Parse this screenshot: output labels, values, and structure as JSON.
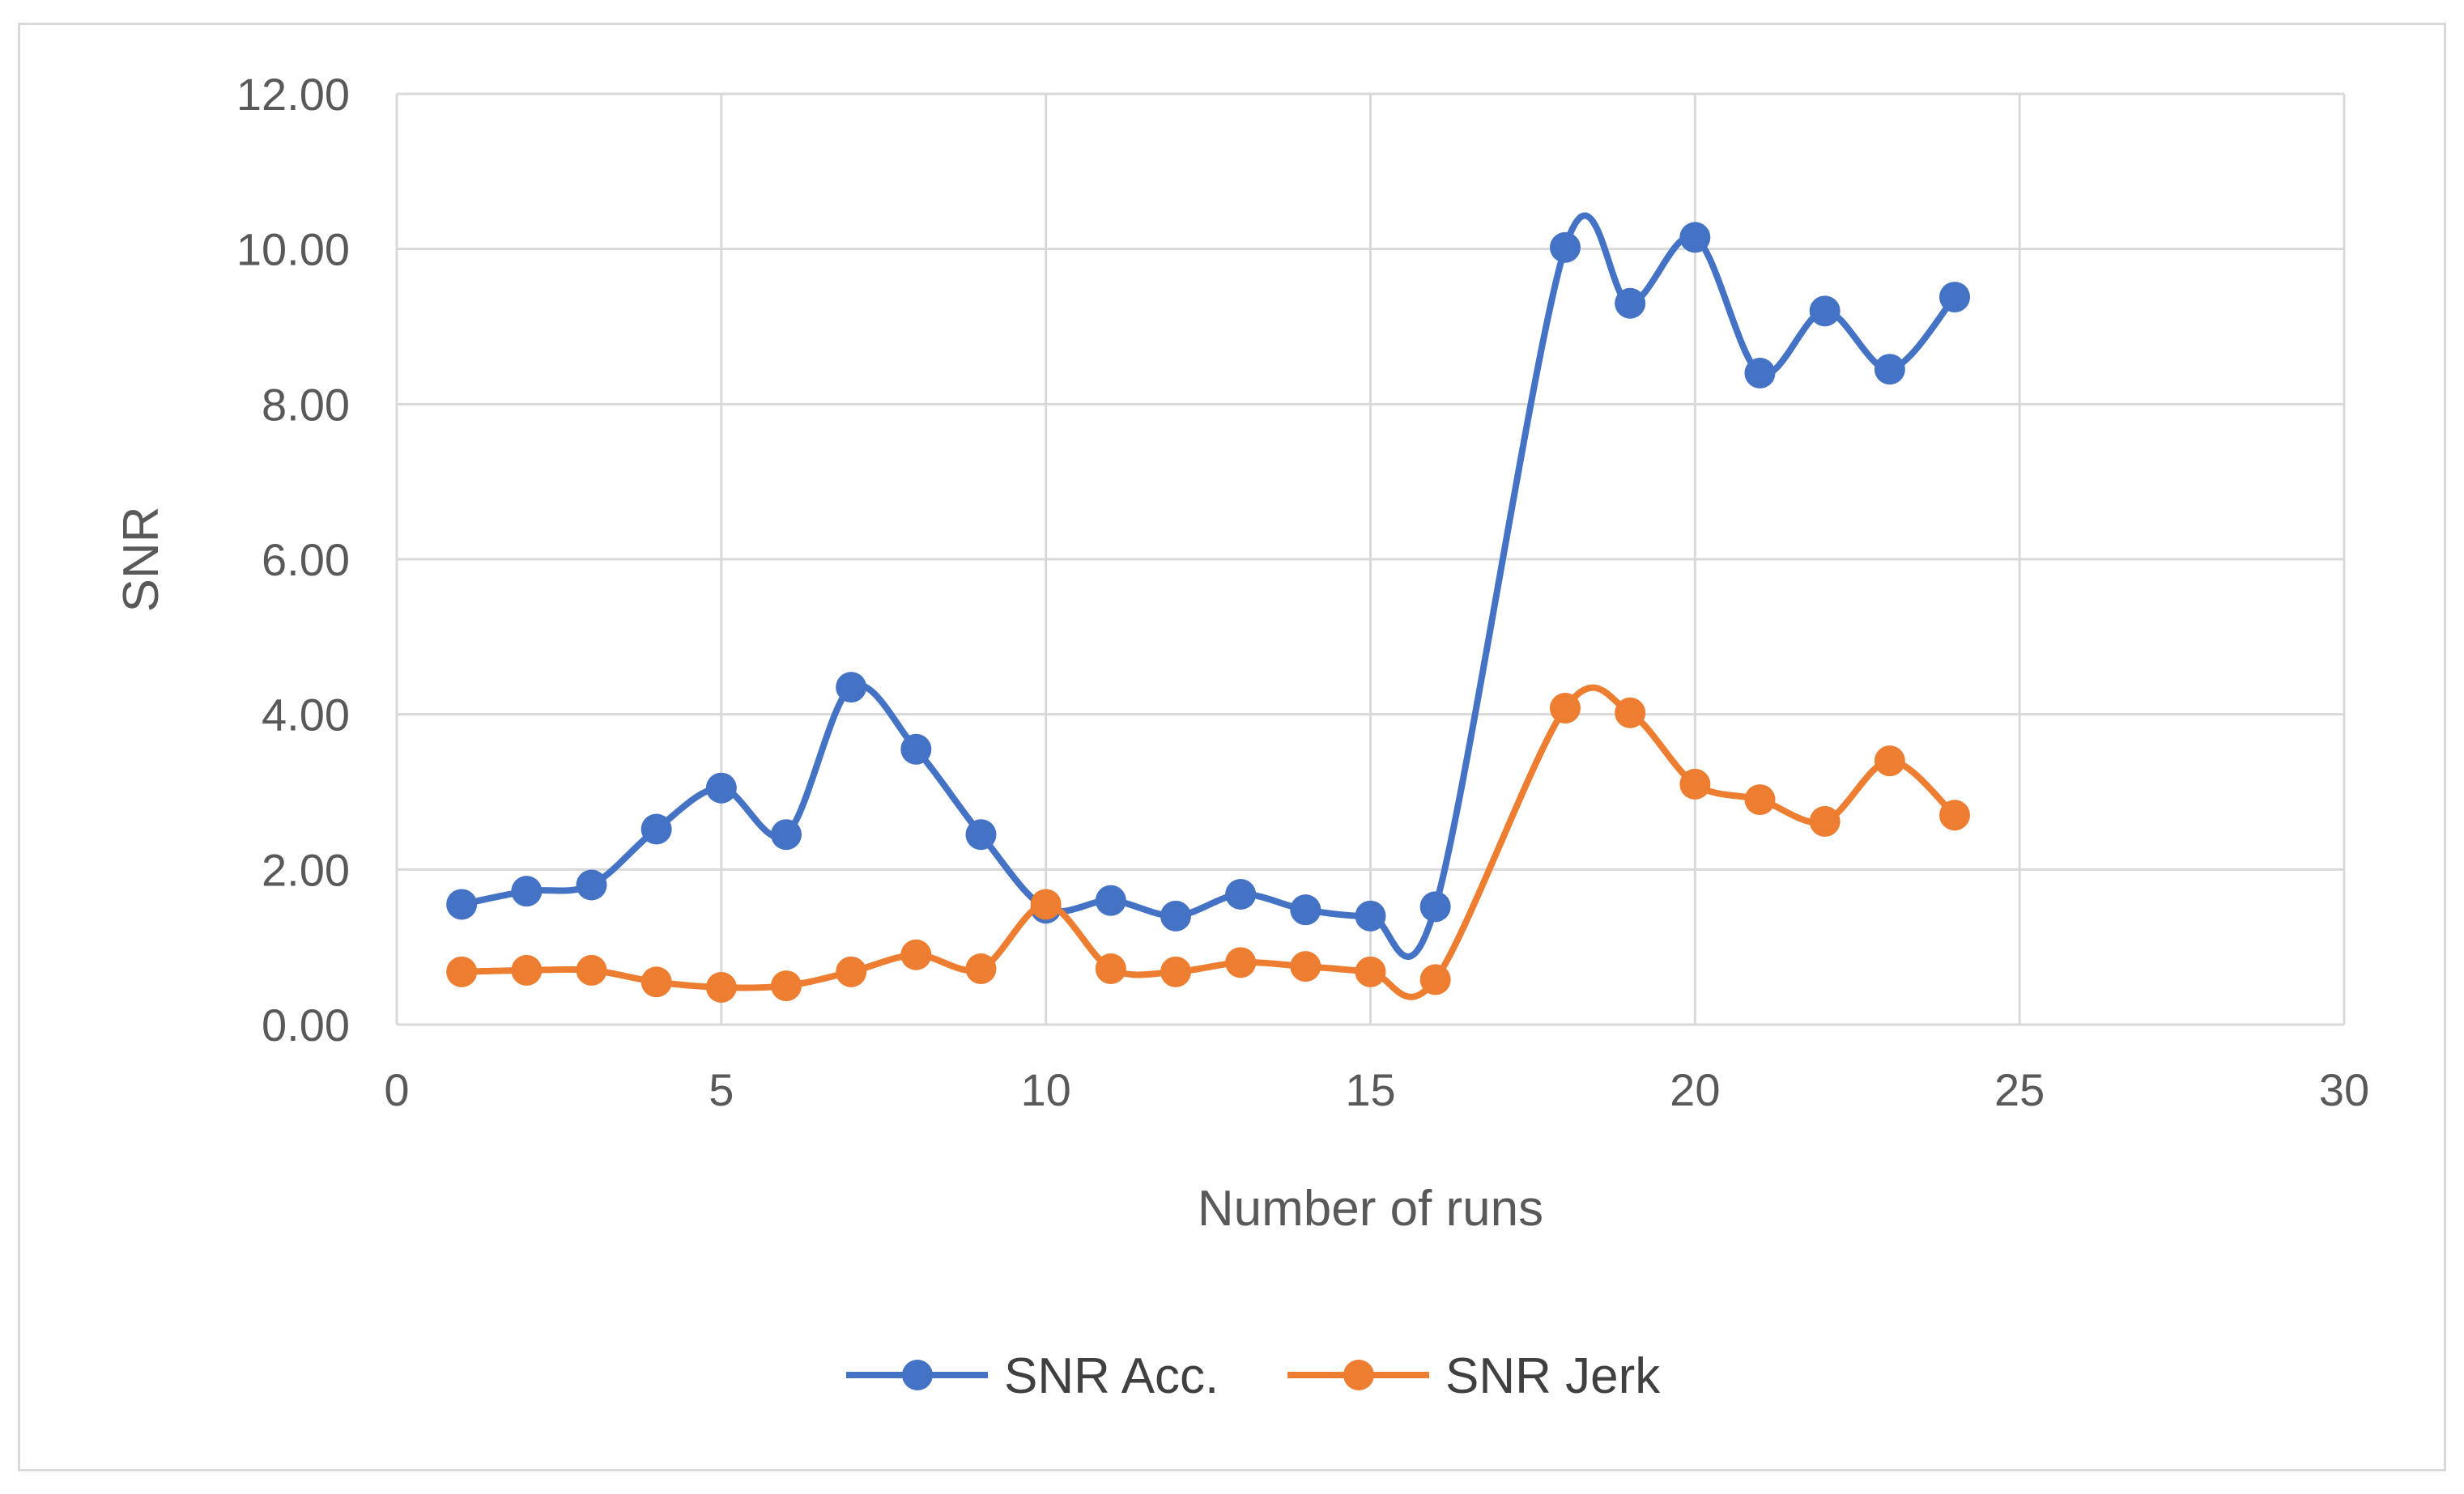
{
  "chart_data": {
    "type": "line",
    "title": "",
    "xlabel": "Number  of runs",
    "ylabel": "SNR",
    "xlim": [
      0,
      30
    ],
    "ylim": [
      0,
      12
    ],
    "x_ticks": [
      0,
      5,
      10,
      15,
      20,
      25,
      30
    ],
    "x_tick_labels": [
      "0",
      "5",
      "10",
      "15",
      "20",
      "25",
      "30"
    ],
    "y_ticks": [
      0,
      2,
      4,
      6,
      8,
      10,
      12
    ],
    "y_tick_labels": [
      "0.00",
      "2.00",
      "4.00",
      "6.00",
      "8.00",
      "10.00",
      "12.00"
    ],
    "grid": true,
    "legend_position": "bottom",
    "x": [
      1,
      2,
      3,
      4,
      5,
      6,
      7,
      8,
      9,
      10,
      11,
      12,
      13,
      14,
      15,
      16,
      18,
      19,
      20,
      21,
      22,
      23,
      24
    ],
    "series": [
      {
        "name": "SNR Acc.",
        "color": "#4472c4",
        "values": [
          1.55,
          1.72,
          1.8,
          2.52,
          3.05,
          2.45,
          4.35,
          3.55,
          2.45,
          1.5,
          1.6,
          1.4,
          1.68,
          1.48,
          1.4,
          1.52,
          10.02,
          9.3,
          10.15,
          8.4,
          9.2,
          8.45,
          9.38
        ]
      },
      {
        "name": "SNR Jerk",
        "color": "#ed7d31",
        "values": [
          0.68,
          0.7,
          0.7,
          0.55,
          0.48,
          0.5,
          0.68,
          0.9,
          0.72,
          1.55,
          0.72,
          0.68,
          0.8,
          0.75,
          0.68,
          0.58,
          4.08,
          4.02,
          3.1,
          2.9,
          2.62,
          3.4,
          2.7
        ]
      }
    ]
  }
}
